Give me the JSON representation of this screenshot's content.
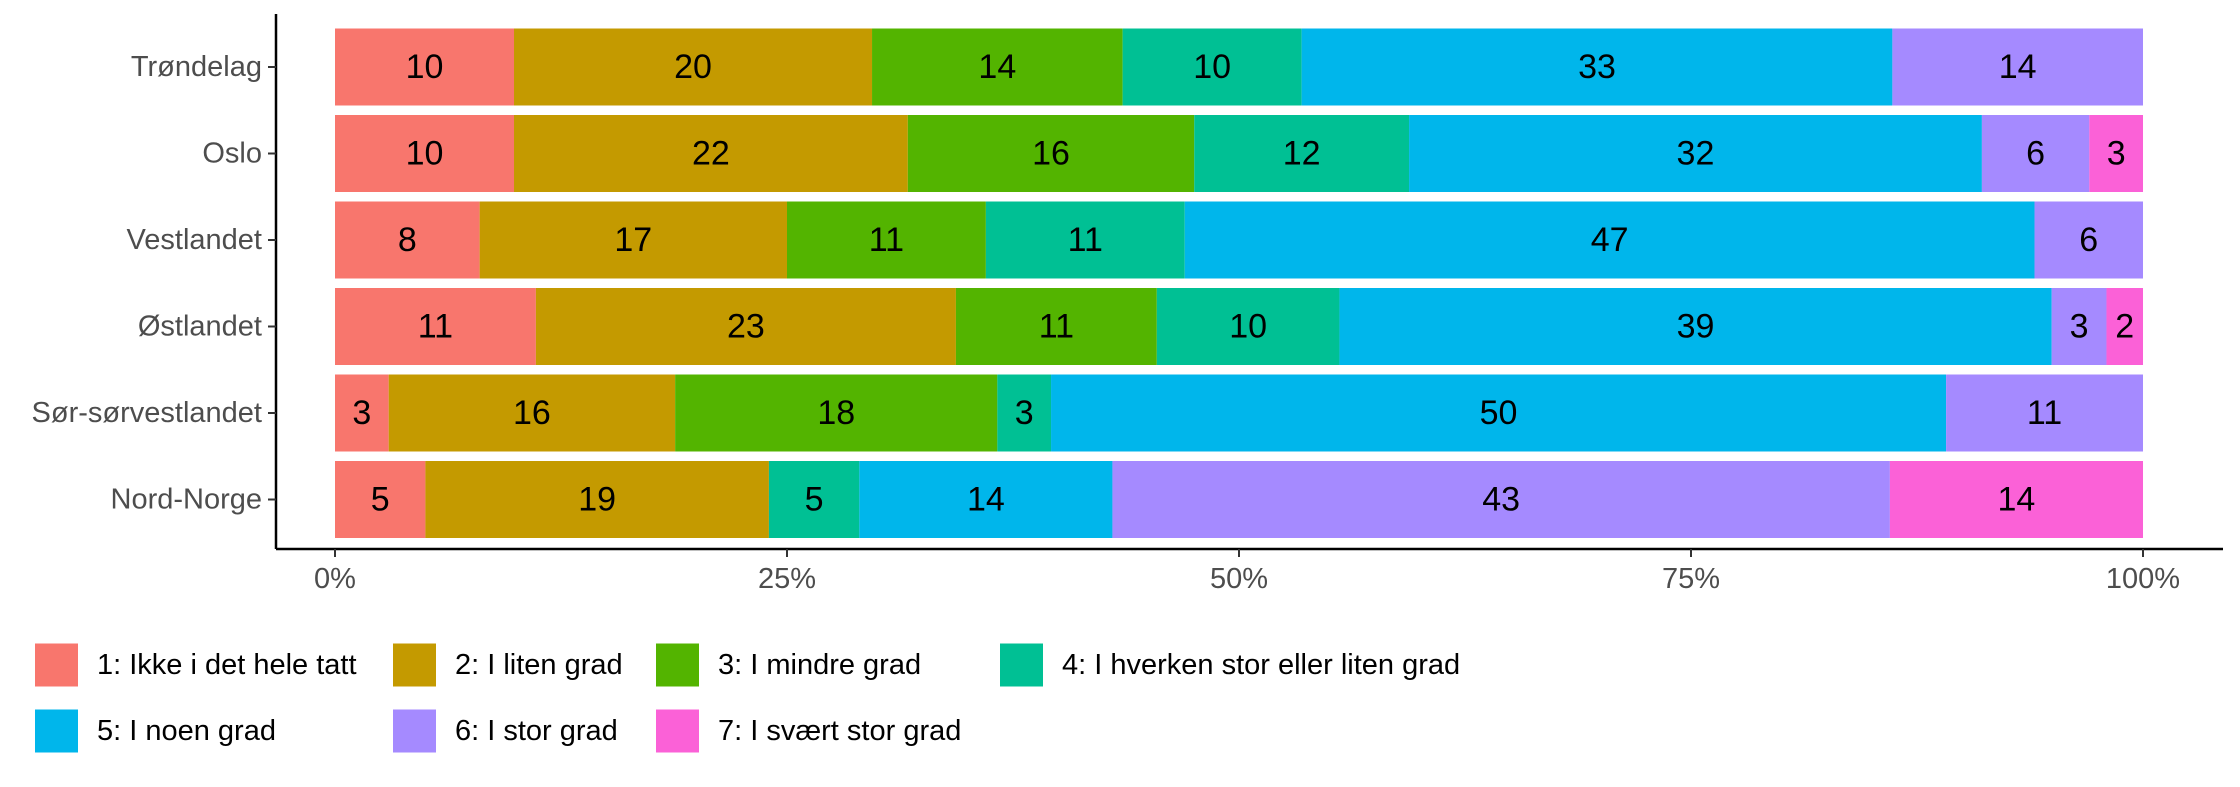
{
  "chart_data": {
    "type": "bar",
    "orientation": "horizontal",
    "stacked": true,
    "normalized": true,
    "categories": [
      "Trøndelag",
      "Oslo",
      "Vestlandet",
      "Østlandet",
      "Sør-sørvestlandet",
      "Nord-Norge"
    ],
    "series": [
      {
        "name": "1: Ikke i det hele tatt",
        "color": "#F8766D",
        "values": [
          10,
          10,
          8,
          11,
          3,
          5
        ]
      },
      {
        "name": "2: I liten grad",
        "color": "#C49A00",
        "values": [
          20,
          22,
          17,
          23,
          16,
          19
        ]
      },
      {
        "name": "3: I mindre grad",
        "color": "#53B400",
        "values": [
          14,
          16,
          11,
          11,
          18,
          0
        ]
      },
      {
        "name": "4: I hverken stor eller liten grad",
        "color": "#00C094",
        "values": [
          10,
          12,
          11,
          10,
          3,
          5
        ]
      },
      {
        "name": "5: I noen grad",
        "color": "#00B6EB",
        "values": [
          33,
          32,
          47,
          39,
          50,
          14
        ]
      },
      {
        "name": "6: I stor grad",
        "color": "#A58AFF",
        "values": [
          14,
          6,
          6,
          3,
          11,
          43
        ]
      },
      {
        "name": "7: I svært stor grad",
        "color": "#FB61D7",
        "values": [
          0,
          3,
          0,
          2,
          0,
          14
        ]
      }
    ],
    "xticks": [
      0,
      0.25,
      0.5,
      0.75,
      1
    ],
    "xtick_labels": [
      "0%",
      "25%",
      "50%",
      "75%",
      "100%"
    ],
    "xlim": [
      0,
      1
    ],
    "grid": false,
    "legend_position": "bottom",
    "title": "",
    "xlabel": "",
    "ylabel": ""
  }
}
